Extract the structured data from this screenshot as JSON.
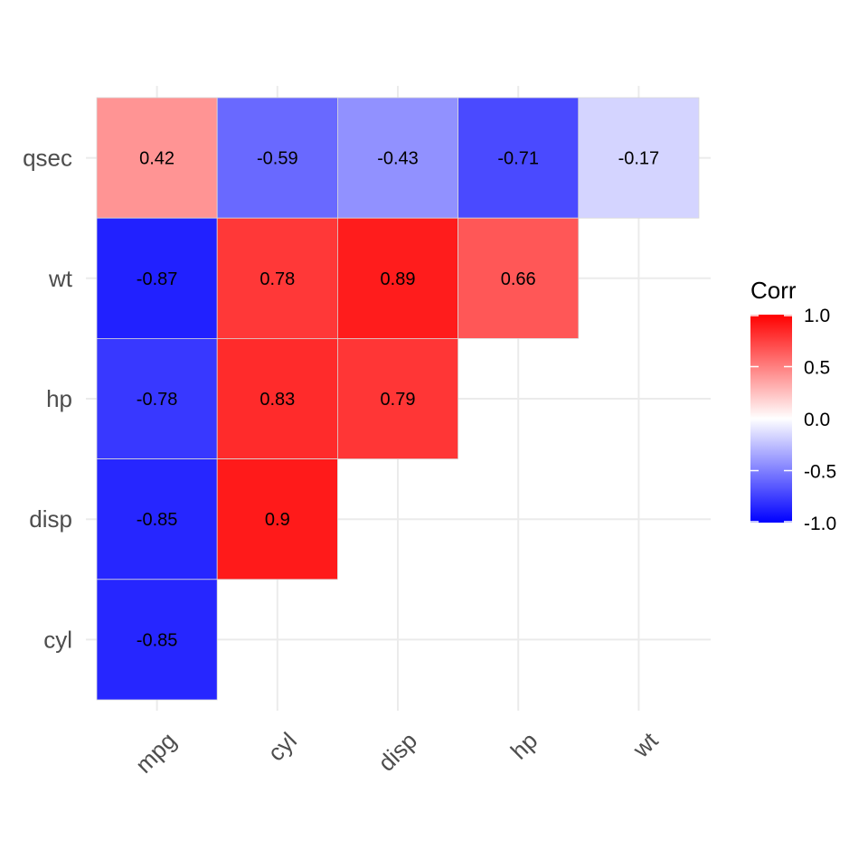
{
  "chart_data": {
    "type": "heatmap",
    "x_categories": [
      "mpg",
      "cyl",
      "disp",
      "hp",
      "wt"
    ],
    "y_categories": [
      "cyl",
      "disp",
      "hp",
      "wt",
      "qsec"
    ],
    "cells": [
      {
        "x": "mpg",
        "y": "qsec",
        "value": 0.42,
        "label": "0.42"
      },
      {
        "x": "cyl",
        "y": "qsec",
        "value": -0.59,
        "label": "-0.59"
      },
      {
        "x": "disp",
        "y": "qsec",
        "value": -0.43,
        "label": "-0.43"
      },
      {
        "x": "hp",
        "y": "qsec",
        "value": -0.71,
        "label": "-0.71"
      },
      {
        "x": "wt",
        "y": "qsec",
        "value": -0.17,
        "label": "-0.17"
      },
      {
        "x": "mpg",
        "y": "wt",
        "value": -0.87,
        "label": "-0.87"
      },
      {
        "x": "cyl",
        "y": "wt",
        "value": 0.78,
        "label": "0.78"
      },
      {
        "x": "disp",
        "y": "wt",
        "value": 0.89,
        "label": "0.89"
      },
      {
        "x": "hp",
        "y": "wt",
        "value": 0.66,
        "label": "0.66"
      },
      {
        "x": "mpg",
        "y": "hp",
        "value": -0.78,
        "label": "-0.78"
      },
      {
        "x": "cyl",
        "y": "hp",
        "value": 0.83,
        "label": "0.83"
      },
      {
        "x": "disp",
        "y": "hp",
        "value": 0.79,
        "label": "0.79"
      },
      {
        "x": "mpg",
        "y": "disp",
        "value": -0.85,
        "label": "-0.85"
      },
      {
        "x": "cyl",
        "y": "disp",
        "value": 0.9,
        "label": "0.9"
      },
      {
        "x": "mpg",
        "y": "cyl",
        "value": -0.85,
        "label": "-0.85"
      }
    ],
    "legend": {
      "title": "Corr",
      "placement": "right",
      "ticks": [
        {
          "value": 1.0,
          "label": "1.0"
        },
        {
          "value": 0.5,
          "label": "0.5"
        },
        {
          "value": 0.0,
          "label": "0.0"
        },
        {
          "value": -0.5,
          "label": "-0.5"
        },
        {
          "value": -1.0,
          "label": "-1.0"
        }
      ]
    },
    "value_range": [
      -1,
      1
    ],
    "colors": {
      "low": "#0000ff",
      "mid": "#ffffff",
      "high": "#ff0000"
    },
    "grid": true
  }
}
